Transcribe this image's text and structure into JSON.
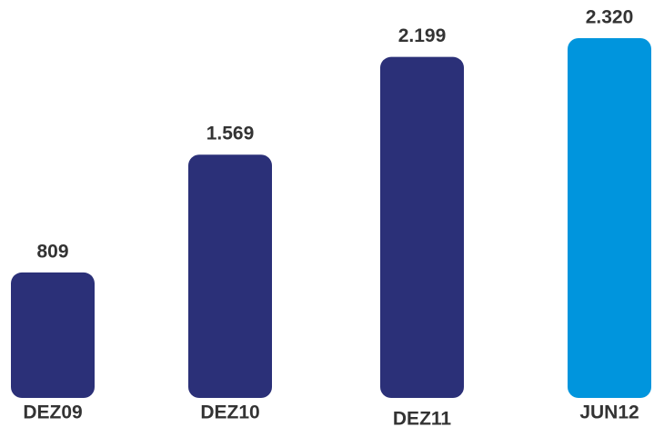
{
  "chart_data": {
    "type": "bar",
    "categories": [
      "DEZ09",
      "DEZ10",
      "DEZ11",
      "JUN12"
    ],
    "values": [
      809,
      1569,
      2199,
      2320
    ],
    "value_labels": [
      "809",
      "1.569",
      "2.199",
      "2.320"
    ],
    "colors": [
      "#2b3078",
      "#2b3078",
      "#2b3078",
      "#0095dd"
    ]
  }
}
